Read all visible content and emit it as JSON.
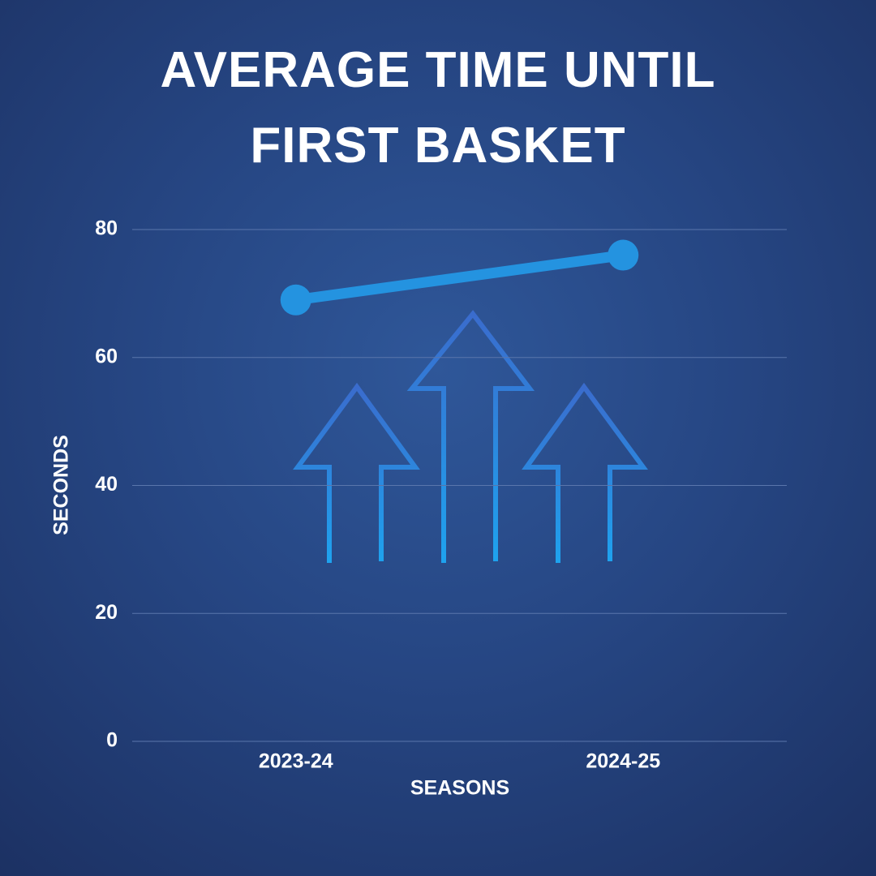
{
  "chart_data": {
    "type": "line",
    "title": "AVERAGE TIME UNTIL FIRST BASKET",
    "x_label": "SEASONS",
    "y_label": "SECONDS",
    "categories": [
      "2023-24",
      "2024-25"
    ],
    "values": [
      69,
      76
    ],
    "color": "#2493e0",
    "ylim": [
      0,
      80
    ],
    "yticks": [
      0,
      20,
      40,
      60,
      80
    ],
    "grid": true
  }
}
